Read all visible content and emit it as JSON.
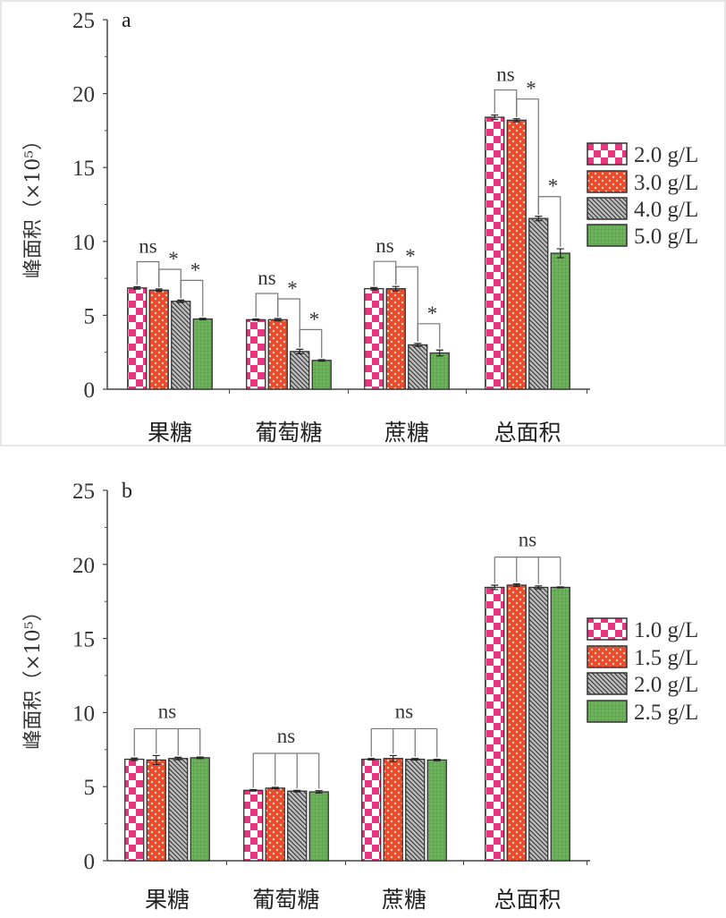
{
  "chart_data": [
    {
      "type": "bar",
      "panel_label": "a",
      "ylabel": "峰面积（×10⁵）",
      "xlabel": "",
      "ylim": [
        0,
        25
      ],
      "yticks": [
        0,
        5,
        10,
        15,
        20,
        25
      ],
      "categories": [
        "果糖",
        "葡萄糖",
        "蔗糖",
        "总面积"
      ],
      "legend_position": "right",
      "series": [
        {
          "name": "2.0 g/L",
          "pattern": "checker",
          "color": "#e8357f",
          "values": [
            6.85,
            4.7,
            6.8,
            18.4
          ],
          "errors": [
            0.08,
            0.05,
            0.08,
            0.15
          ]
        },
        {
          "name": "3.0 g/L",
          "pattern": "dots",
          "color": "#ee4a2a",
          "values": [
            6.7,
            4.7,
            6.8,
            18.2
          ],
          "errors": [
            0.08,
            0.08,
            0.15,
            0.1
          ]
        },
        {
          "name": "4.0 g/L",
          "pattern": "hatch",
          "color": "#8a8a8a",
          "values": [
            5.95,
            2.55,
            3.0,
            11.55
          ],
          "errors": [
            0.08,
            0.15,
            0.1,
            0.15
          ]
        },
        {
          "name": "5.0 g/L",
          "pattern": "grid",
          "color": "#6cb35a",
          "values": [
            4.75,
            1.95,
            2.45,
            9.2
          ],
          "errors": [
            0.05,
            0.05,
            0.2,
            0.3
          ]
        }
      ],
      "annotations": [
        {
          "category": 0,
          "pairs": [
            {
              "from": 0,
              "to": 1,
              "label": "ns"
            },
            {
              "from": 1,
              "to": 2,
              "label": "*"
            },
            {
              "from": 2,
              "to": 3,
              "label": "*"
            }
          ]
        },
        {
          "category": 1,
          "pairs": [
            {
              "from": 0,
              "to": 1,
              "label": "ns"
            },
            {
              "from": 1,
              "to": 2,
              "label": "*"
            },
            {
              "from": 2,
              "to": 3,
              "label": "*"
            }
          ]
        },
        {
          "category": 2,
          "pairs": [
            {
              "from": 0,
              "to": 1,
              "label": "ns"
            },
            {
              "from": 1,
              "to": 2,
              "label": "*"
            },
            {
              "from": 2,
              "to": 3,
              "label": "*"
            }
          ]
        },
        {
          "category": 3,
          "pairs": [
            {
              "from": 0,
              "to": 1,
              "label": "ns"
            },
            {
              "from": 1,
              "to": 2,
              "label": "*"
            },
            {
              "from": 2,
              "to": 3,
              "label": "*"
            }
          ]
        }
      ]
    },
    {
      "type": "bar",
      "panel_label": "b",
      "ylabel": "峰面积（×10⁵）",
      "xlabel": "",
      "ylim": [
        0,
        25
      ],
      "yticks": [
        0,
        5,
        10,
        15,
        20,
        25
      ],
      "categories": [
        "果糖",
        "葡萄糖",
        "蔗糖",
        "总面积"
      ],
      "legend_position": "right",
      "series": [
        {
          "name": "1.0 g/L",
          "pattern": "checker",
          "color": "#e8357f",
          "values": [
            6.85,
            4.75,
            6.85,
            18.45
          ],
          "errors": [
            0.08,
            0.05,
            0.05,
            0.15
          ]
        },
        {
          "name": "1.5 g/L",
          "pattern": "dots",
          "color": "#ee4a2a",
          "values": [
            6.8,
            4.9,
            6.9,
            18.6
          ],
          "errors": [
            0.3,
            0.05,
            0.2,
            0.08
          ]
        },
        {
          "name": "2.0 g/L",
          "pattern": "hatch",
          "color": "#8a8a8a",
          "values": [
            6.9,
            4.7,
            6.85,
            18.45
          ],
          "errors": [
            0.08,
            0.05,
            0.05,
            0.1
          ]
        },
        {
          "name": "2.5 g/L",
          "pattern": "grid",
          "color": "#6cb35a",
          "values": [
            6.95,
            4.65,
            6.8,
            18.45
          ],
          "errors": [
            0.05,
            0.08,
            0.05,
            0.03
          ]
        }
      ],
      "annotations": [
        {
          "category": 0,
          "group": true,
          "label": "ns"
        },
        {
          "category": 1,
          "group": true,
          "label": "ns"
        },
        {
          "category": 2,
          "group": true,
          "label": "ns"
        },
        {
          "category": 3,
          "group": true,
          "label": "ns"
        }
      ]
    }
  ]
}
